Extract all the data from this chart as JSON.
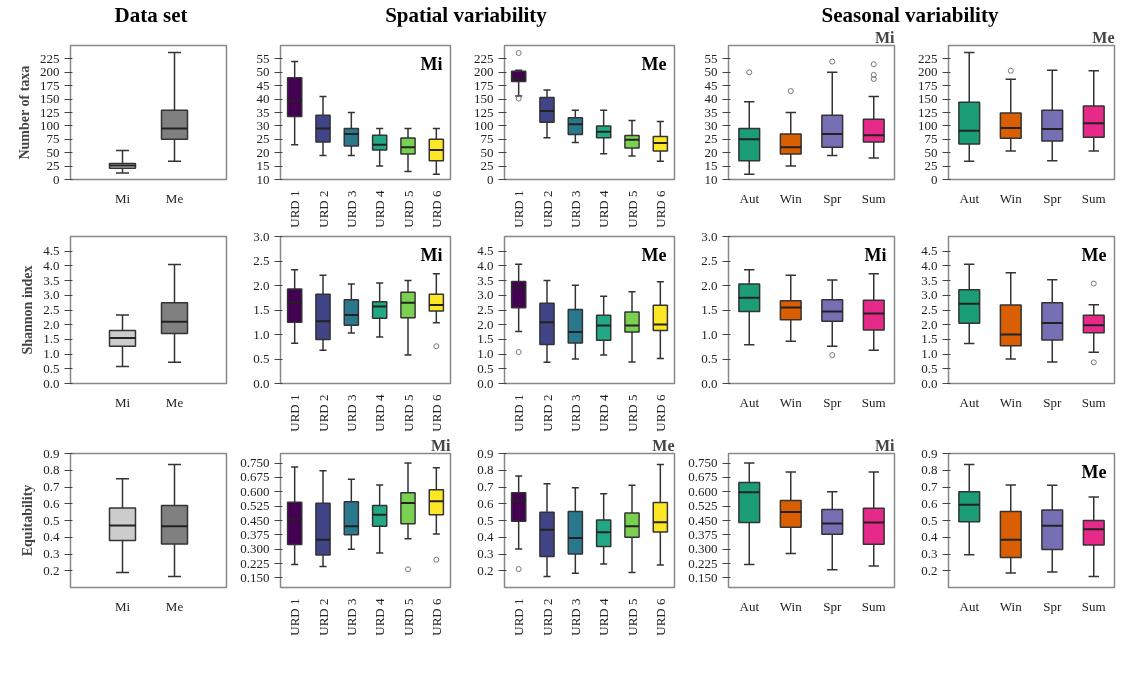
{
  "chart_data": [
    {
      "type": "box",
      "title": "Data set",
      "ylabel": "Number of taxa",
      "categories": [
        "Mi",
        "Me"
      ],
      "colors": [
        "#cccccc",
        "#808080"
      ],
      "ylim": [
        0,
        250
      ],
      "yticks": [
        0,
        25,
        50,
        75,
        100,
        125,
        150,
        175,
        200,
        225
      ],
      "boxes": [
        {
          "low": 12,
          "q1": 21,
          "median": 26,
          "q3": 30,
          "high": 54
        },
        {
          "low": 34,
          "q1": 75,
          "median": 95,
          "q3": 129,
          "high": 237
        }
      ]
    },
    {
      "type": "box",
      "title": "Spatial variability",
      "annotations": [
        "Mi"
      ],
      "categories": [
        "URD 1",
        "URD 2",
        "URD 3",
        "URD 4",
        "URD 5",
        "URD 6"
      ],
      "colors": [
        "#440154",
        "#414487",
        "#2a788e",
        "#22a884",
        "#7ad151",
        "#fde725"
      ],
      "ylim": [
        10,
        60
      ],
      "yticks": [
        10,
        15,
        20,
        25,
        30,
        35,
        40,
        45,
        50,
        55
      ],
      "boxes": [
        {
          "low": 23,
          "q1": 33.5,
          "median": 39.5,
          "q3": 48,
          "high": 54
        },
        {
          "low": 19,
          "q1": 24,
          "median": 29,
          "q3": 34,
          "high": 41
        },
        {
          "low": 19,
          "q1": 22.5,
          "median": 27,
          "q3": 29,
          "high": 35
        },
        {
          "low": 15,
          "q1": 21,
          "median": 23,
          "q3": 26.5,
          "high": 29
        },
        {
          "low": 13,
          "q1": 19.5,
          "median": 22,
          "q3": 25.5,
          "high": 29
        },
        {
          "low": 12,
          "q1": 17,
          "median": 21,
          "q3": 25,
          "high": 29
        }
      ]
    },
    {
      "type": "box",
      "annotations": [
        "Me"
      ],
      "categories": [
        "URD 1",
        "URD 2",
        "URD 3",
        "URD 4",
        "URD 5",
        "URD 6"
      ],
      "colors": [
        "#440154",
        "#414487",
        "#2a788e",
        "#22a884",
        "#7ad151",
        "#fde725"
      ],
      "ylim": [
        0,
        250
      ],
      "yticks": [
        0,
        25,
        50,
        75,
        100,
        125,
        150,
        175,
        200,
        225
      ],
      "boxes": [
        {
          "low": 156,
          "q1": 183,
          "median": 187,
          "q3": 202,
          "high": 204,
          "outliers": [
            236,
            151
          ]
        },
        {
          "low": 78,
          "q1": 107,
          "median": 128,
          "q3": 153,
          "high": 167
        },
        {
          "low": 69,
          "q1": 84,
          "median": 103,
          "q3": 115,
          "high": 129
        },
        {
          "low": 48,
          "q1": 78,
          "median": 89,
          "q3": 100,
          "high": 129
        },
        {
          "low": 44,
          "q1": 59,
          "median": 74,
          "q3": 82,
          "high": 110
        },
        {
          "low": 34,
          "q1": 53,
          "median": 68,
          "q3": 80,
          "high": 108
        }
      ]
    },
    {
      "type": "box",
      "title": "Seasonal variability",
      "annotations": [
        "Mi"
      ],
      "categories": [
        "Aut",
        "Win",
        "Spr",
        "Sum"
      ],
      "colors": [
        "#1b9e77",
        "#d95f02",
        "#7570b3",
        "#e7298a"
      ],
      "ylim": [
        10,
        60
      ],
      "yticks": [
        10,
        15,
        20,
        25,
        30,
        35,
        40,
        45,
        50,
        55
      ],
      "boxes": [
        {
          "low": 12,
          "q1": 17,
          "median": 25,
          "q3": 29,
          "high": 39,
          "outliers": [
            50
          ]
        },
        {
          "low": 15,
          "q1": 19.5,
          "median": 22,
          "q3": 27,
          "high": 35,
          "outliers": [
            43
          ]
        },
        {
          "low": 19,
          "q1": 22,
          "median": 27,
          "q3": 34,
          "high": 50,
          "outliers": [
            54
          ]
        },
        {
          "low": 18,
          "q1": 24,
          "median": 26.5,
          "q3": 32.5,
          "high": 41,
          "outliers": [
            53,
            49,
            47.5
          ]
        }
      ]
    },
    {
      "type": "box",
      "annotations": [
        "Me"
      ],
      "categories": [
        "Aut",
        "Win",
        "Spr",
        "Sum"
      ],
      "colors": [
        "#1b9e77",
        "#d95f02",
        "#7570b3",
        "#e7298a"
      ],
      "ylim": [
        0,
        250
      ],
      "yticks": [
        0,
        25,
        50,
        75,
        100,
        125,
        150,
        175,
        200,
        225
      ],
      "boxes": [
        {
          "low": 34,
          "q1": 66,
          "median": 91,
          "q3": 144,
          "high": 237
        },
        {
          "low": 53,
          "q1": 77,
          "median": 96,
          "q3": 124,
          "high": 187,
          "outliers": [
            203
          ]
        },
        {
          "low": 35,
          "q1": 72,
          "median": 94,
          "q3": 129,
          "high": 204
        },
        {
          "low": 53,
          "q1": 79,
          "median": 105,
          "q3": 137,
          "high": 203
        }
      ]
    },
    {
      "type": "box",
      "ylabel": "Shannon index",
      "categories": [
        "Mi",
        "Me"
      ],
      "colors": [
        "#cccccc",
        "#808080"
      ],
      "ylim": [
        0,
        5
      ],
      "yticks": [
        {
          "value": 0,
          "label": "0.0"
        },
        0.5,
        {
          "value": 1,
          "label": "1.0"
        },
        1.5,
        {
          "value": 2,
          "label": "2.0"
        },
        2.5,
        {
          "value": 3,
          "label": "3.0"
        },
        3.5,
        {
          "value": 4,
          "label": "4.0"
        },
        4.5
      ],
      "boxes": [
        {
          "low": 0.58,
          "q1": 1.27,
          "median": 1.55,
          "q3": 1.8,
          "high": 2.33
        },
        {
          "low": 0.72,
          "q1": 1.7,
          "median": 2.1,
          "q3": 2.75,
          "high": 4.05
        }
      ]
    },
    {
      "type": "box",
      "annotations": [
        "Mi"
      ],
      "categories": [
        "URD 1",
        "URD 2",
        "URD 3",
        "URD 4",
        "URD 5",
        "URD 6"
      ],
      "colors": [
        "#440154",
        "#414487",
        "#2a788e",
        "#22a884",
        "#7ad151",
        "#fde725"
      ],
      "ylim": [
        0,
        3
      ],
      "yticks": [
        {
          "value": 0,
          "label": "0.0"
        },
        0.5,
        {
          "value": 1,
          "label": "1.0"
        },
        1.5,
        {
          "value": 2,
          "label": "2.0"
        },
        2.5,
        {
          "value": 3,
          "label": "3.0"
        }
      ],
      "boxes": [
        {
          "low": 0.82,
          "q1": 1.25,
          "median": 1.66,
          "q3": 1.93,
          "high": 2.32
        },
        {
          "low": 0.68,
          "q1": 0.9,
          "median": 1.27,
          "q3": 1.82,
          "high": 2.21
        },
        {
          "low": 1.03,
          "q1": 1.19,
          "median": 1.4,
          "q3": 1.71,
          "high": 2.03
        },
        {
          "low": 0.95,
          "q1": 1.33,
          "median": 1.57,
          "q3": 1.67,
          "high": 2.05
        },
        {
          "low": 0.58,
          "q1": 1.34,
          "median": 1.65,
          "q3": 1.86,
          "high": 2.1
        },
        {
          "low": 1.24,
          "q1": 1.48,
          "median": 1.6,
          "q3": 1.82,
          "high": 2.24,
          "outliers": [
            0.76
          ]
        }
      ]
    },
    {
      "type": "box",
      "annotations": [
        "Me"
      ],
      "categories": [
        "URD 1",
        "URD 2",
        "URD 3",
        "URD 4",
        "URD 5",
        "URD 6"
      ],
      "colors": [
        "#440154",
        "#414487",
        "#2a788e",
        "#22a884",
        "#7ad151",
        "#fde725"
      ],
      "ylim": [
        0,
        5
      ],
      "yticks": [
        {
          "value": 0,
          "label": "0.0"
        },
        0.5,
        {
          "value": 1,
          "label": "1.0"
        },
        1.5,
        {
          "value": 2,
          "label": "2.0"
        },
        2.5,
        {
          "value": 3,
          "label": "3.0"
        },
        3.5,
        {
          "value": 4,
          "label": "4.0"
        },
        4.5
      ],
      "boxes": [
        {
          "low": 1.77,
          "q1": 2.58,
          "median": 3.26,
          "q3": 3.47,
          "high": 4.06,
          "outliers": [
            1.07
          ]
        },
        {
          "low": 0.72,
          "q1": 1.33,
          "median": 2.08,
          "q3": 2.73,
          "high": 3.5
        },
        {
          "low": 0.83,
          "q1": 1.38,
          "median": 1.75,
          "q3": 2.52,
          "high": 3.34
        },
        {
          "low": 0.97,
          "q1": 1.47,
          "median": 1.97,
          "q3": 2.32,
          "high": 2.97
        },
        {
          "low": 0.73,
          "q1": 1.75,
          "median": 1.97,
          "q3": 2.43,
          "high": 3.12
        },
        {
          "low": 0.85,
          "q1": 1.8,
          "median": 2.01,
          "q3": 2.66,
          "high": 3.46
        }
      ]
    },
    {
      "type": "box",
      "annotations": [
        "Mi"
      ],
      "categories": [
        "Aut",
        "Win",
        "Spr",
        "Sum"
      ],
      "colors": [
        "#1b9e77",
        "#d95f02",
        "#7570b3",
        "#e7298a"
      ],
      "ylim": [
        0,
        3
      ],
      "yticks": [
        {
          "value": 0,
          "label": "0.0"
        },
        0.5,
        {
          "value": 1,
          "label": "1.0"
        },
        1.5,
        {
          "value": 2,
          "label": "2.0"
        },
        2.5,
        {
          "value": 3,
          "label": "3.0"
        }
      ],
      "boxes": [
        {
          "low": 0.79,
          "q1": 1.47,
          "median": 1.75,
          "q3": 2.03,
          "high": 2.32
        },
        {
          "low": 0.86,
          "q1": 1.3,
          "median": 1.55,
          "q3": 1.69,
          "high": 2.21
        },
        {
          "low": 0.76,
          "q1": 1.27,
          "median": 1.47,
          "q3": 1.71,
          "high": 2.11,
          "outliers": [
            0.58
          ]
        },
        {
          "low": 0.68,
          "q1": 1.09,
          "median": 1.43,
          "q3": 1.7,
          "high": 2.24
        }
      ]
    },
    {
      "type": "box",
      "annotations": [
        "Me"
      ],
      "categories": [
        "Aut",
        "Win",
        "Spr",
        "Sum"
      ],
      "colors": [
        "#1b9e77",
        "#d95f02",
        "#7570b3",
        "#e7298a"
      ],
      "ylim": [
        0,
        5
      ],
      "yticks": [
        {
          "value": 0,
          "label": "0.0"
        },
        0.5,
        {
          "value": 1,
          "label": "1.0"
        },
        1.5,
        {
          "value": 2,
          "label": "2.0"
        },
        2.5,
        {
          "value": 3,
          "label": "3.0"
        },
        3.5,
        {
          "value": 4,
          "label": "4.0"
        },
        4.5
      ],
      "boxes": [
        {
          "low": 1.36,
          "q1": 2.05,
          "median": 2.71,
          "q3": 3.19,
          "high": 4.06
        },
        {
          "low": 0.83,
          "q1": 1.28,
          "median": 1.67,
          "q3": 2.67,
          "high": 3.77
        },
        {
          "low": 0.73,
          "q1": 1.48,
          "median": 2.06,
          "q3": 2.75,
          "high": 3.53
        },
        {
          "low": 1.06,
          "q1": 1.73,
          "median": 1.98,
          "q3": 2.32,
          "high": 2.68,
          "outliers": [
            3.4,
            0.72
          ]
        }
      ]
    },
    {
      "type": "box",
      "ylabel": "Equitability",
      "categories": [
        "Mi",
        "Me"
      ],
      "colors": [
        "#cccccc",
        "#808080"
      ],
      "ylim": [
        0.1,
        0.9
      ],
      "yticks": [
        0.2,
        0.3,
        0.4,
        0.5,
        0.6,
        0.7,
        0.8,
        0.9
      ],
      "boxes": [
        {
          "low": 0.19,
          "q1": 0.38,
          "median": 0.47,
          "q3": 0.575,
          "high": 0.75
        },
        {
          "low": 0.165,
          "q1": 0.36,
          "median": 0.465,
          "q3": 0.59,
          "high": 0.835
        }
      ]
    },
    {
      "type": "box",
      "annotations": [
        "Mi"
      ],
      "categories": [
        "URD 1",
        "URD 2",
        "URD 3",
        "URD 4",
        "URD 5",
        "URD 6"
      ],
      "colors": [
        "#440154",
        "#414487",
        "#2a788e",
        "#22a884",
        "#7ad151",
        "#fde725"
      ],
      "ylim": [
        0.1,
        0.8
      ],
      "yticks": [
        {
          "value": 0.15,
          "label": "0.150"
        },
        0.225,
        {
          "value": 0.3,
          "label": "0.300"
        },
        0.375,
        {
          "value": 0.45,
          "label": "0.450"
        },
        0.525,
        {
          "value": 0.6,
          "label": "0.600"
        },
        0.675,
        {
          "value": 0.75,
          "label": "0.750"
        }
      ],
      "boxes": [
        {
          "low": 0.22,
          "q1": 0.325,
          "median": 0.455,
          "q3": 0.545,
          "high": 0.73
        },
        {
          "low": 0.21,
          "q1": 0.27,
          "median": 0.35,
          "q3": 0.54,
          "high": 0.71
        },
        {
          "low": 0.3,
          "q1": 0.375,
          "median": 0.42,
          "q3": 0.548,
          "high": 0.665
        },
        {
          "low": 0.28,
          "q1": 0.42,
          "median": 0.48,
          "q3": 0.528,
          "high": 0.635
        },
        {
          "low": 0.355,
          "q1": 0.433,
          "median": 0.542,
          "q3": 0.595,
          "high": 0.75,
          "outliers": [
            0.195
          ]
        },
        {
          "low": 0.38,
          "q1": 0.48,
          "median": 0.55,
          "q3": 0.61,
          "high": 0.725,
          "outliers": [
            0.245
          ]
        }
      ]
    },
    {
      "type": "box",
      "annotations": [
        "Me"
      ],
      "categories": [
        "URD 1",
        "URD 2",
        "URD 3",
        "URD 4",
        "URD 5",
        "URD 6"
      ],
      "colors": [
        "#440154",
        "#414487",
        "#2a788e",
        "#22a884",
        "#7ad151",
        "#fde725"
      ],
      "ylim": [
        0.1,
        0.9
      ],
      "yticks": [
        0.2,
        0.3,
        0.4,
        0.5,
        0.6,
        0.7,
        0.8,
        0.9
      ],
      "boxes": [
        {
          "low": 0.33,
          "q1": 0.495,
          "median": 0.62,
          "q3": 0.665,
          "high": 0.765,
          "outliers": [
            0.21
          ]
        },
        {
          "low": 0.165,
          "q1": 0.285,
          "median": 0.445,
          "q3": 0.55,
          "high": 0.72
        },
        {
          "low": 0.185,
          "q1": 0.3,
          "median": 0.395,
          "q3": 0.553,
          "high": 0.695
        },
        {
          "low": 0.24,
          "q1": 0.345,
          "median": 0.43,
          "q3": 0.503,
          "high": 0.66
        },
        {
          "low": 0.19,
          "q1": 0.4,
          "median": 0.465,
          "q3": 0.545,
          "high": 0.71
        },
        {
          "low": 0.235,
          "q1": 0.432,
          "median": 0.49,
          "q3": 0.607,
          "high": 0.835
        }
      ]
    },
    {
      "type": "box",
      "annotations": [
        "Mi"
      ],
      "categories": [
        "Aut",
        "Win",
        "Spr",
        "Sum"
      ],
      "colors": [
        "#1b9e77",
        "#d95f02",
        "#7570b3",
        "#e7298a"
      ],
      "ylim": [
        0.1,
        0.8
      ],
      "yticks": [
        {
          "value": 0.15,
          "label": "0.150"
        },
        0.225,
        {
          "value": 0.3,
          "label": "0.300"
        },
        0.375,
        {
          "value": 0.45,
          "label": "0.450"
        },
        0.525,
        {
          "value": 0.6,
          "label": "0.600"
        },
        0.675,
        {
          "value": 0.75,
          "label": "0.750"
        }
      ],
      "boxes": [
        {
          "low": 0.22,
          "q1": 0.44,
          "median": 0.597,
          "q3": 0.648,
          "high": 0.75
        },
        {
          "low": 0.278,
          "q1": 0.415,
          "median": 0.495,
          "q3": 0.555,
          "high": 0.703
        },
        {
          "low": 0.193,
          "q1": 0.378,
          "median": 0.434,
          "q3": 0.507,
          "high": 0.6
        },
        {
          "low": 0.212,
          "q1": 0.326,
          "median": 0.44,
          "q3": 0.514,
          "high": 0.703
        }
      ]
    },
    {
      "type": "box",
      "annotations": [
        "Me"
      ],
      "categories": [
        "Aut",
        "Win",
        "Spr",
        "Sum"
      ],
      "colors": [
        "#1b9e77",
        "#d95f02",
        "#7570b3",
        "#e7298a"
      ],
      "ylim": [
        0.1,
        0.9
      ],
      "yticks": [
        0.2,
        0.3,
        0.4,
        0.5,
        0.6,
        0.7,
        0.8,
        0.9
      ],
      "boxes": [
        {
          "low": 0.295,
          "q1": 0.493,
          "median": 0.594,
          "q3": 0.672,
          "high": 0.835
        },
        {
          "low": 0.187,
          "q1": 0.279,
          "median": 0.385,
          "q3": 0.553,
          "high": 0.712
        },
        {
          "low": 0.193,
          "q1": 0.327,
          "median": 0.468,
          "q3": 0.562,
          "high": 0.71
        },
        {
          "low": 0.165,
          "q1": 0.353,
          "median": 0.448,
          "q3": 0.5,
          "high": 0.64
        }
      ]
    }
  ]
}
